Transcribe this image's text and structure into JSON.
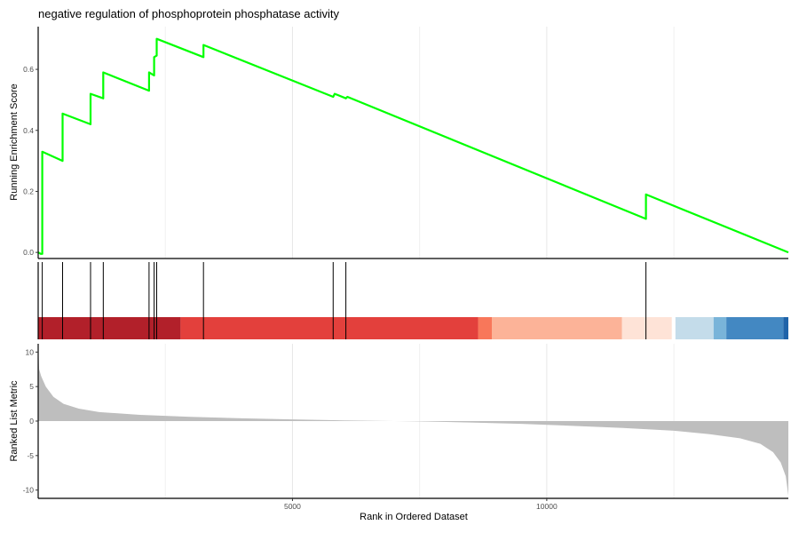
{
  "chart_data": {
    "type": "line",
    "title": "negative regulation of phosphoprotein phosphatase activity",
    "xlabel": "Rank in Ordered Dataset",
    "x_ticks": [
      5000,
      10000
    ],
    "xlim": [
      0,
      14750
    ],
    "grid": true,
    "line_color": "#00ff00",
    "enrichment": {
      "ylabel": "Running Enrichment Score",
      "ylim": [
        -0.02,
        0.74
      ],
      "y_ticks": [
        0.0,
        0.2,
        0.4,
        0.6
      ],
      "y_tick_labels": [
        "0.0",
        "0.2",
        "0.4",
        "0.6"
      ],
      "points": [
        [
          0,
          0.0
        ],
        [
          50,
          -0.005
        ],
        [
          80,
          -0.005
        ],
        [
          80,
          0.33
        ],
        [
          480,
          0.3
        ],
        [
          480,
          0.455
        ],
        [
          1030,
          0.42
        ],
        [
          1030,
          0.52
        ],
        [
          1280,
          0.505
        ],
        [
          1280,
          0.59
        ],
        [
          2180,
          0.53
        ],
        [
          2180,
          0.59
        ],
        [
          2280,
          0.58
        ],
        [
          2280,
          0.64
        ],
        [
          2330,
          0.645
        ],
        [
          2330,
          0.7
        ],
        [
          3250,
          0.64
        ],
        [
          3250,
          0.68
        ],
        [
          5800,
          0.51
        ],
        [
          5830,
          0.52
        ],
        [
          6050,
          0.505
        ],
        [
          6080,
          0.51
        ],
        [
          11950,
          0.11
        ],
        [
          11950,
          0.19
        ],
        [
          14750,
          0.0
        ]
      ]
    },
    "hits": [
      80,
      480,
      1030,
      1280,
      2180,
      2280,
      2330,
      3250,
      5800,
      6050,
      11950
    ],
    "color_band": [
      {
        "start": 0,
        "end": 2800,
        "color": "#b2202a"
      },
      {
        "start": 2800,
        "end": 8650,
        "color": "#e3403c"
      },
      {
        "start": 8650,
        "end": 8920,
        "color": "#f8775a"
      },
      {
        "start": 8920,
        "end": 11480,
        "color": "#fcb398"
      },
      {
        "start": 11480,
        "end": 12460,
        "color": "#fee3d7"
      },
      {
        "start": 12460,
        "end": 12530,
        "color": "#ffffff"
      },
      {
        "start": 12530,
        "end": 13280,
        "color": "#c4dcea"
      },
      {
        "start": 13280,
        "end": 13530,
        "color": "#79b4d9"
      },
      {
        "start": 13530,
        "end": 14650,
        "color": "#4388c2"
      },
      {
        "start": 14650,
        "end": 14750,
        "color": "#1f63a9"
      }
    ],
    "ranked_metric": {
      "ylabel": "Ranked List Metric",
      "ylim": [
        -11.2,
        11.2
      ],
      "y_ticks": [
        10,
        5,
        0,
        -5,
        -10
      ],
      "y_tick_labels": [
        "10",
        "5",
        "0",
        "-5",
        "-10"
      ],
      "fill_color": "#bebebe",
      "points": [
        [
          0,
          11
        ],
        [
          20,
          7.5
        ],
        [
          60,
          6.5
        ],
        [
          150,
          5
        ],
        [
          300,
          3.5
        ],
        [
          500,
          2.5
        ],
        [
          800,
          1.8
        ],
        [
          1200,
          1.3
        ],
        [
          2000,
          0.9
        ],
        [
          3000,
          0.6
        ],
        [
          4000,
          0.4
        ],
        [
          5000,
          0.25
        ],
        [
          6000,
          0.1
        ],
        [
          7000,
          0.0
        ],
        [
          7500,
          -0.05
        ],
        [
          8500,
          -0.2
        ],
        [
          9500,
          -0.4
        ],
        [
          10500,
          -0.7
        ],
        [
          11500,
          -1.0
        ],
        [
          12500,
          -1.4
        ],
        [
          13200,
          -1.9
        ],
        [
          13800,
          -2.5
        ],
        [
          14200,
          -3.3
        ],
        [
          14450,
          -4.5
        ],
        [
          14600,
          -6
        ],
        [
          14700,
          -8
        ],
        [
          14750,
          -10.8
        ]
      ]
    }
  }
}
